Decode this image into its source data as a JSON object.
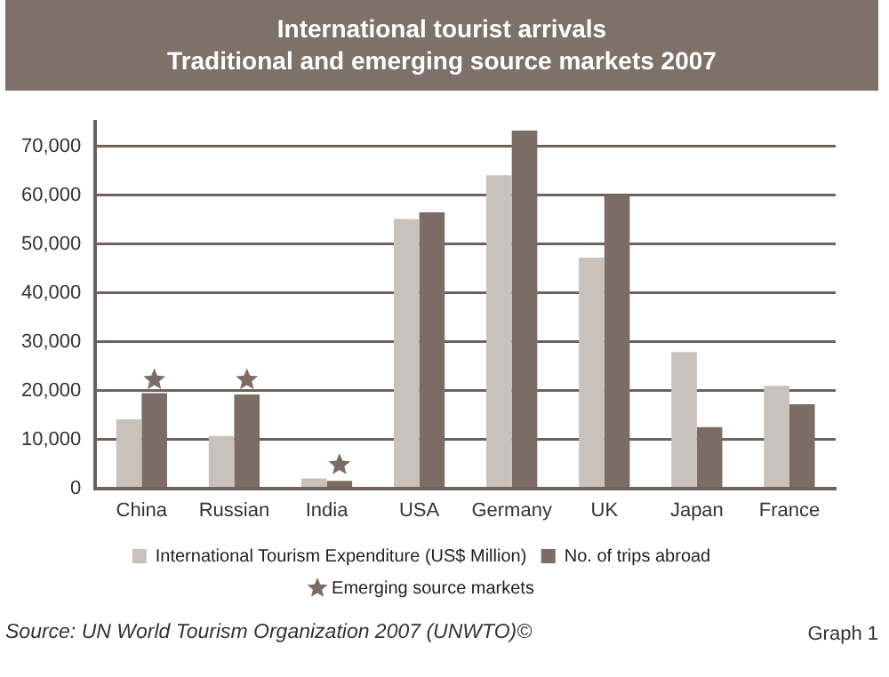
{
  "chart_data": {
    "type": "bar",
    "title": "International tourist arrivals",
    "subtitle": "Traditional and emerging source markets 2007",
    "categories": [
      "China",
      "Russian",
      "India",
      "USA",
      "Germany",
      "UK",
      "Japan",
      "France"
    ],
    "series": [
      {
        "name": "International Tourism Expenditure (US$ Million)",
        "color": "#c9c1bc",
        "values": [
          14100,
          10700,
          2000,
          55100,
          64100,
          47200,
          27900,
          21000
        ]
      },
      {
        "name": "No. of trips abroad",
        "color": "#7b6d66",
        "values": [
          19500,
          19200,
          1500,
          56500,
          73200,
          60000,
          12500,
          17200
        ]
      },
      {
        "name": "Emerging source markets",
        "type": "scatter",
        "color": "#7b6d66",
        "x": [
          "China",
          "Russian",
          "India"
        ],
        "values": [
          22200,
          22200,
          4800
        ]
      }
    ],
    "ylim": [
      0,
      75000
    ],
    "yticks": [
      {
        "value": 0,
        "label": "0"
      },
      {
        "value": 10000,
        "label": "10,000"
      },
      {
        "value": 20000,
        "label": "20,000"
      },
      {
        "value": 30000,
        "label": "30,000"
      },
      {
        "value": 40000,
        "label": "40,000"
      },
      {
        "value": 50000,
        "label": "50,000"
      },
      {
        "value": 60000,
        "label": "60,000"
      },
      {
        "value": 70000,
        "label": "70,000"
      }
    ],
    "grid": "y",
    "legend": "bottom",
    "marker": "star",
    "annotations": [
      "Source: UN World Tourism Organization 2007 (UNWTO)©",
      "Graph 1"
    ]
  }
}
